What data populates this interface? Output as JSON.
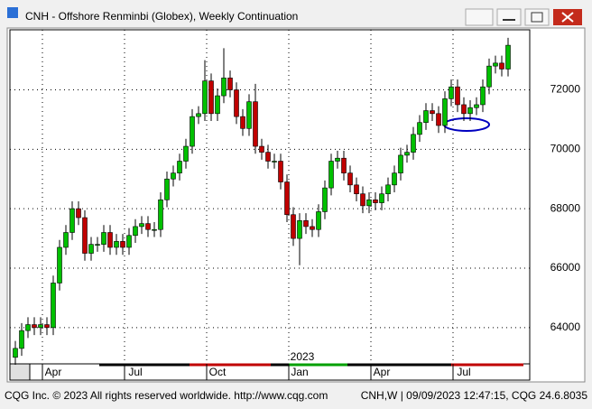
{
  "window_title": "CNH - Offshore Renminbi (Globex), Weekly Continuation",
  "footer_left": "CQG Inc. © 2023 All rights reserved worldwide. http://www.cqg.com",
  "footer_right": "CNH,W | 09/09/2023 12:47:15, CQG 24.6.8035",
  "chart_data": {
    "type": "candlestick",
    "categories": [
      null,
      null,
      null,
      null,
      null,
      null,
      "Apr",
      null,
      null,
      null,
      null,
      null,
      null,
      null,
      null,
      null,
      null,
      null,
      null,
      "Jul",
      null,
      null,
      null,
      null,
      null,
      null,
      null,
      null,
      null,
      null,
      null,
      null,
      "Oct",
      null,
      null,
      null,
      null,
      null,
      null,
      null,
      null,
      null,
      null,
      null,
      null,
      "Jan",
      null,
      null,
      null,
      null,
      null,
      null,
      null,
      null,
      null,
      null,
      null,
      null,
      "Apr",
      null,
      null,
      null,
      null,
      null,
      null,
      null,
      null,
      null,
      null,
      null,
      null,
      "Jul",
      null,
      null,
      null,
      null,
      null,
      null,
      null
    ],
    "year_label": "2023",
    "open": [
      63000,
      63300,
      63900,
      64100,
      64000,
      64100,
      64000,
      65500,
      66700,
      67200,
      68000,
      67700,
      66500,
      66800,
      66800,
      67200,
      66700,
      66900,
      66700,
      67100,
      67400,
      67500,
      67300,
      67300,
      68300,
      69000,
      69200,
      69600,
      70100,
      71100,
      71200,
      72300,
      71200,
      71800,
      72400,
      72000,
      71100,
      70700,
      71600,
      70100,
      69900,
      69600,
      69600,
      68900,
      67800,
      67000,
      67600,
      67400,
      67300,
      67900,
      68700,
      69600,
      69700,
      69200,
      68800,
      68500,
      68100,
      68300,
      68200,
      68500,
      68800,
      69200,
      69800,
      69900,
      70500,
      70900,
      71300,
      71200,
      70800,
      71700,
      72100,
      71500,
      71200,
      71400,
      71500,
      72100,
      72800,
      72900,
      72700
    ],
    "high": [
      63550,
      64150,
      64350,
      64350,
      64350,
      64350,
      65750,
      66950,
      67450,
      68250,
      68250,
      67950,
      67050,
      67050,
      67450,
      67450,
      67150,
      67150,
      67350,
      67650,
      67750,
      67750,
      67550,
      68550,
      69250,
      69450,
      69850,
      70350,
      71350,
      71450,
      73000,
      72550,
      72050,
      73400,
      72650,
      72250,
      71350,
      71850,
      72200,
      70350,
      70150,
      69850,
      69850,
      69150,
      68050,
      67850,
      67850,
      67650,
      68150,
      68950,
      69850,
      69950,
      69950,
      69450,
      69050,
      68750,
      68550,
      68550,
      68750,
      69050,
      69450,
      70050,
      70150,
      70750,
      71150,
      71550,
      71550,
      71450,
      71950,
      72350,
      72350,
      71750,
      71650,
      71750,
      72350,
      73050,
      73150,
      73150,
      73750
    ],
    "low": [
      62750,
      63050,
      63650,
      63750,
      63750,
      63750,
      63750,
      65250,
      66450,
      66950,
      67450,
      66250,
      66250,
      66550,
      66550,
      66450,
      66450,
      66450,
      66450,
      66850,
      67150,
      67050,
      67050,
      67050,
      68050,
      68750,
      68950,
      69350,
      69850,
      70850,
      70950,
      70950,
      70950,
      71550,
      71750,
      70850,
      70450,
      70450,
      69850,
      69650,
      69350,
      69350,
      68650,
      67550,
      66750,
      66100,
      67150,
      67050,
      67050,
      67650,
      68450,
      69350,
      68950,
      68550,
      68250,
      67850,
      67850,
      67950,
      67950,
      68250,
      68550,
      68950,
      69550,
      69650,
      70250,
      70650,
      70950,
      70550,
      70550,
      71450,
      71250,
      70950,
      70950,
      71150,
      71250,
      71850,
      72550,
      72450,
      72450
    ],
    "close": [
      63300,
      63900,
      64100,
      64000,
      64100,
      64000,
      65500,
      66700,
      67200,
      68000,
      67700,
      66500,
      66800,
      66800,
      67200,
      66700,
      66900,
      66700,
      67100,
      67400,
      67500,
      67300,
      67300,
      68300,
      69000,
      69200,
      69600,
      70100,
      71100,
      71200,
      72300,
      71200,
      71800,
      72400,
      72000,
      71100,
      70700,
      71600,
      70100,
      69900,
      69600,
      69600,
      68900,
      67800,
      67000,
      67600,
      67400,
      67300,
      67900,
      68700,
      69600,
      69700,
      69200,
      68800,
      68500,
      68100,
      68300,
      68200,
      68500,
      68800,
      69200,
      69800,
      69900,
      70500,
      70900,
      71300,
      71200,
      70800,
      71700,
      72100,
      71500,
      71200,
      71400,
      71500,
      72100,
      72800,
      72900,
      72700,
      73500
    ],
    "up_color": "#00c000",
    "down_color": "#c00000",
    "ylim": [
      62780,
      74020
    ],
    "yticks": [
      64000,
      66000,
      68000,
      70000,
      72000
    ],
    "grid": true
  }
}
